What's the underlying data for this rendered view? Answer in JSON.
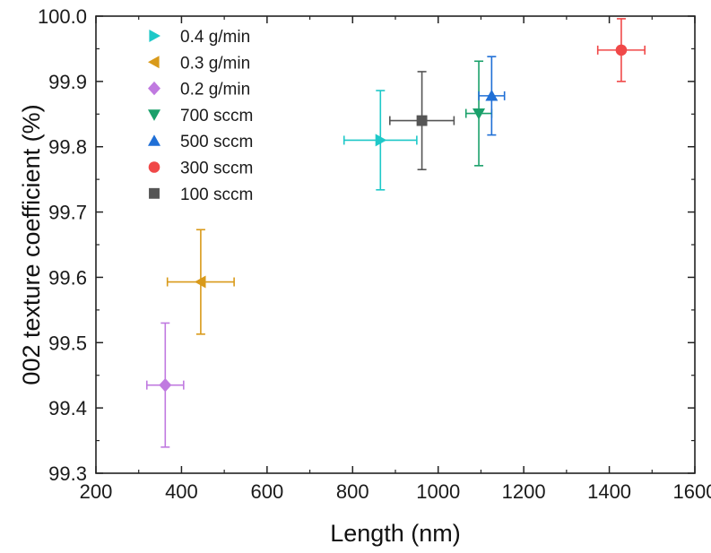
{
  "chart_data": {
    "type": "scatter",
    "title": "",
    "xlabel": "Length (nm)",
    "ylabel": "002 texture coefficient (%)",
    "xlim": [
      200,
      1600
    ],
    "ylim": [
      99.3,
      100.0
    ],
    "xticks": [
      "200",
      "400",
      "600",
      "800",
      "1000",
      "1200",
      "1400",
      "1600"
    ],
    "yticks": [
      "99.3",
      "99.4",
      "99.5",
      "99.6",
      "99.7",
      "99.8",
      "99.9",
      "100.0"
    ],
    "grid": false,
    "legend_position": "top-left",
    "series": [
      {
        "name": "0.4 g/min",
        "marker": "triangle-right",
        "color": "#1ec8c8",
        "x": 865,
        "y": 99.81,
        "xerr": 85,
        "yerr": 0.076
      },
      {
        "name": "0.3 g/min",
        "marker": "triangle-left",
        "color": "#d99a1a",
        "x": 445,
        "y": 99.593,
        "xerr": 78,
        "yerr": 0.08
      },
      {
        "name": "0.2 g/min",
        "marker": "diamond",
        "color": "#c07ae0",
        "x": 362,
        "y": 99.435,
        "xerr": 43,
        "yerr": 0.095
      },
      {
        "name": "700 sccm",
        "marker": "triangle-down",
        "color": "#1aa06a",
        "x": 1095,
        "y": 99.851,
        "xerr": 30,
        "yerr": 0.08
      },
      {
        "name": "500 sccm",
        "marker": "triangle-up",
        "color": "#1f6fd6",
        "x": 1125,
        "y": 99.878,
        "xerr": 30,
        "yerr": 0.06
      },
      {
        "name": "300 sccm",
        "marker": "circle",
        "color": "#f04848",
        "x": 1428,
        "y": 99.948,
        "xerr": 55,
        "yerr": 0.048
      },
      {
        "name": "100 sccm",
        "marker": "square",
        "color": "#555555",
        "x": 962,
        "y": 99.84,
        "xerr": 75,
        "yerr": 0.075
      }
    ]
  }
}
